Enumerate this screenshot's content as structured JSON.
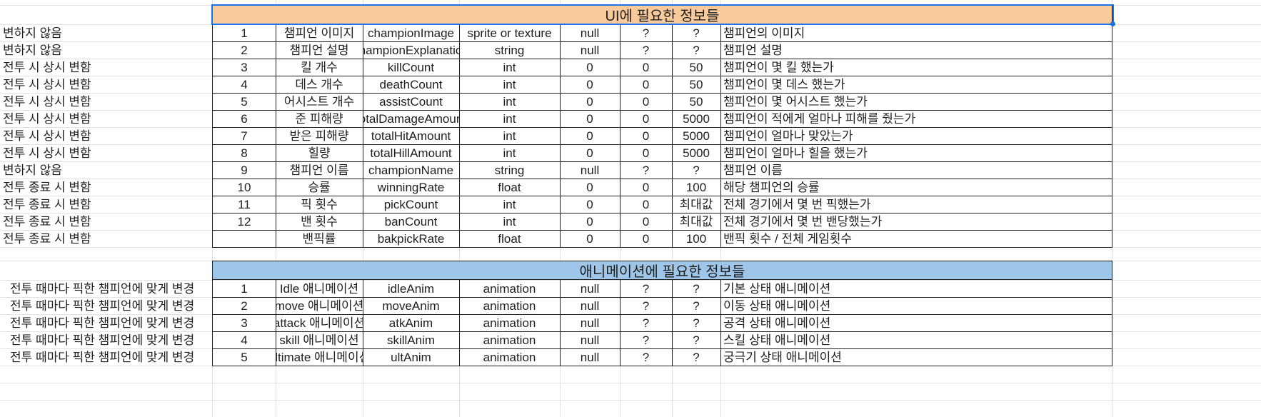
{
  "colors": {
    "ui_header_bg": "#f9cb9c",
    "anim_header_bg": "#9fc5e8",
    "selection": "#1a73e8",
    "gridline": "#e2e2e2",
    "border": "#202020"
  },
  "ui_section": {
    "title": "UI에 필요한 정보들",
    "rows": [
      {
        "note": "변하지 않음",
        "no": "1",
        "name": "챔피언 이미지",
        "var": "championImage",
        "type": "sprite or texture",
        "default": "null",
        "min": "?",
        "max": "?",
        "desc": "챔피언의 이미지"
      },
      {
        "note": "변하지 않음",
        "no": "2",
        "name": "챔피언 설명",
        "var": "championExplanation",
        "type": "string",
        "default": "null",
        "min": "?",
        "max": "?",
        "desc": "챔피언 설명"
      },
      {
        "note": "전투 시 상시 변함",
        "no": "3",
        "name": "킬 개수",
        "var": "killCount",
        "type": "int",
        "default": "0",
        "min": "0",
        "max": "50",
        "desc": "챔피언이 몇 킬 했는가"
      },
      {
        "note": "전투 시 상시 변함",
        "no": "4",
        "name": "데스 개수",
        "var": "deathCount",
        "type": "int",
        "default": "0",
        "min": "0",
        "max": "50",
        "desc": "챔피언이 몇 데스 했는가"
      },
      {
        "note": "전투 시 상시 변함",
        "no": "5",
        "name": "어시스트 개수",
        "var": "assistCount",
        "type": "int",
        "default": "0",
        "min": "0",
        "max": "50",
        "desc": "챔피언이 몇 어시스트 했는가"
      },
      {
        "note": "전투 시 상시 변함",
        "no": "6",
        "name": "준 피해량",
        "var": "totalDamageAmount",
        "type": "int",
        "default": "0",
        "min": "0",
        "max": "5000",
        "desc": "챔피언이 적에게 얼마나 피해를 줬는가"
      },
      {
        "note": "전투 시 상시 변함",
        "no": "7",
        "name": "받은 피해량",
        "var": "totalHitAmount",
        "type": "int",
        "default": "0",
        "min": "0",
        "max": "5000",
        "desc": "챔피언이 얼마나 맞았는가"
      },
      {
        "note": "전투 시 상시 변함",
        "no": "8",
        "name": "힐량",
        "var": "totalHillAmount",
        "type": "int",
        "default": "0",
        "min": "0",
        "max": "5000",
        "desc": "챔피언이 얼마나 힐을 했는가"
      },
      {
        "note": "변하지 않음",
        "no": "9",
        "name": "챔피언 이름",
        "var": "championName",
        "type": "string",
        "default": "null",
        "min": "?",
        "max": "?",
        "desc": "챔피언 이름"
      },
      {
        "note": "전투 종료 시 변함",
        "no": "10",
        "name": "승률",
        "var": "winningRate",
        "type": "float",
        "default": "0",
        "min": "0",
        "max": "100",
        "desc": "해당 챔피언의 승률"
      },
      {
        "note": "전투 종료 시 변함",
        "no": "11",
        "name": "픽 횟수",
        "var": "pickCount",
        "type": "int",
        "default": "0",
        "min": "0",
        "max": "최대값",
        "desc": "전체 경기에서 몇 번 픽했는가"
      },
      {
        "note": "전투 종료 시 변함",
        "no": "12",
        "name": "밴 횟수",
        "var": "banCount",
        "type": "int",
        "default": "0",
        "min": "0",
        "max": "최대값",
        "desc": "전체 경기에서 몇 번 밴당했는가"
      },
      {
        "note": "전투 종료 시 변함",
        "no": "",
        "name": "밴픽률",
        "var": "bakpickRate",
        "type": "float",
        "default": "0",
        "min": "0",
        "max": "100",
        "desc": "밴픽 횟수 / 전체 게임횟수"
      }
    ]
  },
  "anim_section": {
    "title": "애니메이션에 필요한 정보들",
    "rows": [
      {
        "note": "전투 때마다 픽한 챔피언에 맞게 변경",
        "no": "1",
        "name": "Idle 애니메이션",
        "var": "idleAnim",
        "type": "animation",
        "default": "null",
        "min": "?",
        "max": "?",
        "desc": "기본 상태 애니메이션"
      },
      {
        "note": "전투 때마다 픽한 챔피언에 맞게 변경",
        "no": "2",
        "name": "move 애니메이션",
        "var": "moveAnim",
        "type": "animation",
        "default": "null",
        "min": "?",
        "max": "?",
        "desc": "이동 상태 애니메이션"
      },
      {
        "note": "전투 때마다 픽한 챔피언에 맞게 변경",
        "no": "3",
        "name": "attack 애니메이션",
        "var": "atkAnim",
        "type": "animation",
        "default": "null",
        "min": "?",
        "max": "?",
        "desc": "공격 상태 애니메이션"
      },
      {
        "note": "전투 때마다 픽한 챔피언에 맞게 변경",
        "no": "4",
        "name": "skill 애니메이션",
        "var": "skillAnim",
        "type": "animation",
        "default": "null",
        "min": "?",
        "max": "?",
        "desc": "스킬 상태 애니메이션"
      },
      {
        "note": "전투 때마다 픽한 챔피언에 맞게 변경",
        "no": "5",
        "name": "ultimate 애니메이션",
        "var": "ultAnim",
        "type": "animation",
        "default": "null",
        "min": "?",
        "max": "?",
        "desc": "궁극기 상태 애니메이션"
      }
    ]
  }
}
